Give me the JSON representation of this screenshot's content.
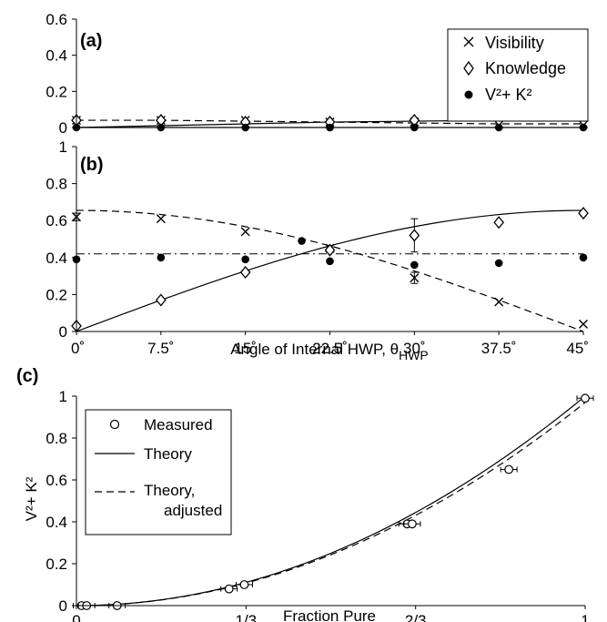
{
  "chart_data": [
    {
      "panel": "(a)",
      "type": "scatter",
      "ylim": [
        0,
        0.6
      ],
      "yticks": [
        "0",
        "0.2",
        "0.4",
        "0.6"
      ],
      "x": [
        0,
        7.5,
        15,
        22.5,
        30,
        37.5,
        45
      ],
      "series": [
        {
          "name": "Visibility",
          "marker": "x",
          "values": [
            0.04,
            0.04,
            0.04,
            0.03,
            0.03,
            0.02,
            0.02
          ]
        },
        {
          "name": "Knowledge",
          "marker": "open-diamond",
          "values": [
            0.04,
            0.04,
            0.03,
            0.03,
            0.04,
            0.04,
            0.04
          ]
        },
        {
          "name": "V²+ K²",
          "marker": "filled-circle",
          "values": [
            0.0,
            0.0,
            0.0,
            0.0,
            0.0,
            0.0,
            0.0
          ]
        }
      ],
      "lines": [
        {
          "style": "dashed",
          "values": [
            0.04,
            0.04,
            0.035,
            0.03,
            0.025,
            0.02,
            0.02
          ]
        },
        {
          "style": "solid",
          "values": [
            0.0,
            0.01,
            0.02,
            0.03,
            0.035,
            0.04,
            0.04
          ]
        },
        {
          "style": "solid",
          "values": [
            0.0,
            0.0,
            0.0,
            0.0,
            0.0,
            0.0,
            0.0
          ]
        }
      ]
    },
    {
      "panel": "(b)",
      "type": "scatter",
      "xlabel": "Angle of Internal HWP, θ",
      "xlabel_sub": "HWP",
      "xlim": [
        0,
        45
      ],
      "xticks": [
        "0˚",
        "7.5˚",
        "15˚",
        "22.5˚",
        "30˚",
        "37.5˚",
        "45˚"
      ],
      "ylim": [
        0,
        1
      ],
      "yticks": [
        "0",
        "0.2",
        "0.4",
        "0.6",
        "0.8",
        "1"
      ],
      "x": [
        0,
        7.5,
        15,
        22.5,
        30,
        37.5,
        45
      ],
      "series": [
        {
          "name": "Visibility",
          "marker": "x",
          "values": [
            0.62,
            0.61,
            0.54,
            0.45,
            0.29,
            0.16,
            0.04
          ],
          "errors": [
            0.02,
            0.0,
            0.0,
            0.0,
            0.03,
            0.0,
            0.0
          ]
        },
        {
          "name": "Knowledge",
          "marker": "open-diamond",
          "values": [
            0.03,
            0.17,
            0.32,
            0.44,
            0.52,
            0.59,
            0.64
          ],
          "errors": [
            0.0,
            0.0,
            0.0,
            0.0,
            0.09,
            0.0,
            0.0
          ]
        },
        {
          "name": "V²+ K²",
          "marker": "filled-circle",
          "x": [
            0,
            7.5,
            15,
            20,
            22.5,
            30,
            37.5,
            45
          ],
          "values": [
            0.39,
            0.4,
            0.39,
            0.49,
            0.38,
            0.36,
            0.37,
            0.4
          ]
        }
      ],
      "reference_line": {
        "style": "dash-dot",
        "value": 0.42
      }
    },
    {
      "panel": "(c)",
      "type": "scatter",
      "xlabel": "Fraction Pure",
      "ylabel": "V²+ K²",
      "xlim": [
        0,
        1
      ],
      "ylim": [
        0,
        1
      ],
      "xticks_values": [
        0,
        0.3333,
        0.6667,
        1
      ],
      "xticks": [
        "0",
        "1/3",
        "2/3",
        "1"
      ],
      "yticks": [
        "0",
        "0.2",
        "0.4",
        "0.6",
        "0.8",
        "1"
      ],
      "series": [
        {
          "name": "Measured",
          "marker": "open-circle",
          "x": [
            0.01,
            0.02,
            0.08,
            0.3,
            0.33,
            0.65,
            0.66,
            0.85,
            1.0
          ],
          "values": [
            0.0,
            0.0,
            0.0,
            0.08,
            0.1,
            0.39,
            0.39,
            0.65,
            0.99
          ]
        },
        {
          "name": "Theory",
          "style": "solid",
          "formula": "x^2"
        },
        {
          "name": "Theory, adjusted",
          "style": "dashed",
          "formula": "0.97*x^2"
        }
      ]
    }
  ]
}
